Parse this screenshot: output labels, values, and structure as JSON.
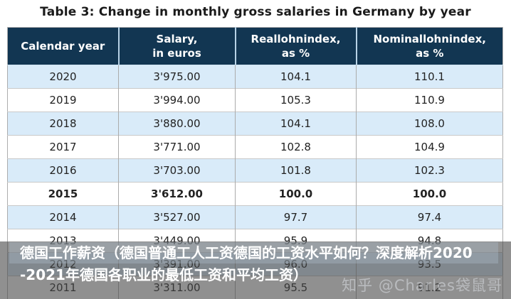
{
  "title": "Table 3: Change in monthly gross salaries in Germany by year",
  "table": {
    "columns": [
      {
        "line1": "Calendar year",
        "line2": ""
      },
      {
        "line1": "Salary,",
        "line2": "in euros"
      },
      {
        "line1": "Reallohnindex,",
        "line2": "as %"
      },
      {
        "line1": "Nominallohnindex,",
        "line2": "as %"
      }
    ],
    "rows": [
      {
        "year": "2020",
        "salary": "3'975.00",
        "real": "104.1",
        "nominal": "110.1"
      },
      {
        "year": "2019",
        "salary": "3'994.00",
        "real": "105.3",
        "nominal": "110.9"
      },
      {
        "year": "2018",
        "salary": "3'880.00",
        "real": "104.1",
        "nominal": "108.0"
      },
      {
        "year": "2017",
        "salary": "3'771.00",
        "real": "102.8",
        "nominal": "104.9"
      },
      {
        "year": "2016",
        "salary": "3'703.00",
        "real": "101.8",
        "nominal": "102.3"
      },
      {
        "year": "2015",
        "salary": "3'612.00",
        "real": "100.0",
        "nominal": "100.0"
      },
      {
        "year": "2014",
        "salary": "3'527.00",
        "real": "97.7",
        "nominal": "97.4"
      },
      {
        "year": "2013",
        "salary": "3'449.00",
        "real": "95.9",
        "nominal": "94.8"
      },
      {
        "year": "2012",
        "salary": "3'391.00",
        "real": "96.0",
        "nominal": "93.5"
      },
      {
        "year": "2011",
        "salary": "3'311.00",
        "real": "95.5",
        "nominal": "91.2"
      }
    ]
  },
  "overlay": {
    "line1": "德国工作薪资（德国普通工人工资德国的工资水平如何？深度解析2020",
    "line2": "-2021年德国各职业的最低工资和平均工资）"
  },
  "watermark": "知乎 @Charles袋鼠哥",
  "colors": {
    "header_bg": "#123652",
    "header_sep": "#b7d2e6",
    "row_alt": "#d9ebf9"
  },
  "chart_data": {
    "type": "table",
    "title": "Table 3: Change in monthly gross salaries in Germany by year",
    "columns": [
      "Calendar year",
      "Salary, in euros",
      "Reallohnindex, as %",
      "Nominallohnindex, as %"
    ],
    "rows": [
      [
        "2020",
        "3'975.00",
        104.1,
        110.1
      ],
      [
        "2019",
        "3'994.00",
        105.3,
        110.9
      ],
      [
        "2018",
        "3'880.00",
        104.1,
        108.0
      ],
      [
        "2017",
        "3'771.00",
        102.8,
        104.9
      ],
      [
        "2016",
        "3'703.00",
        101.8,
        102.3
      ],
      [
        "2015",
        "3'612.00",
        100.0,
        100.0
      ],
      [
        "2014",
        "3'527.00",
        97.7,
        97.4
      ],
      [
        "2013",
        "3'449.00",
        95.9,
        94.8
      ],
      [
        "2012",
        "3'391.00",
        96.0,
        93.5
      ],
      [
        "2011",
        "3'311.00",
        95.5,
        91.2
      ]
    ]
  }
}
